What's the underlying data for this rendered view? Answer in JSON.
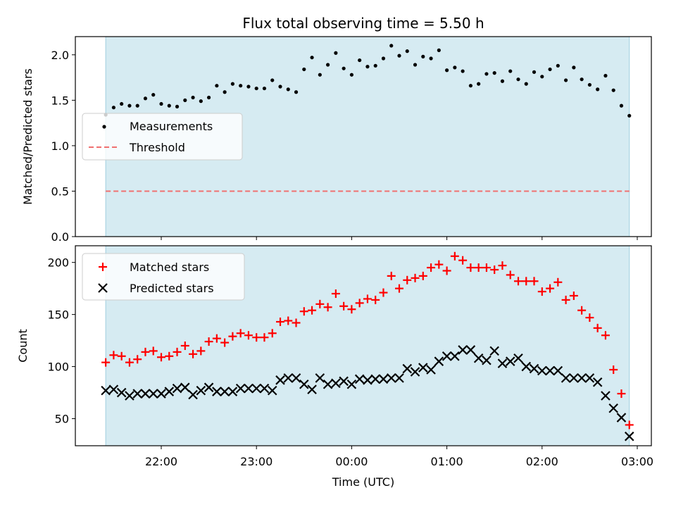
{
  "chart_data": [
    {
      "type": "scatter",
      "title": "Flux total observing time = 5.50 h",
      "xlabel": "",
      "ylabel": "Matched/Predicted stars",
      "x_tick_labels": [],
      "ylim": [
        0,
        2.2
      ],
      "y_ticks": [
        0.0,
        0.5,
        1.0,
        1.5,
        2.0
      ],
      "y_tick_labels": [
        "0.0",
        "0.5",
        "1.0",
        "1.5",
        "2.0"
      ],
      "legend_position": "center-left",
      "shaded_span": [
        "21:25",
        "02:55"
      ],
      "series": [
        {
          "name": "Measurements",
          "marker": "dot",
          "color": "#000000",
          "x": [
            "21:25",
            "21:30",
            "21:35",
            "21:40",
            "21:45",
            "21:50",
            "21:55",
            "22:00",
            "22:05",
            "22:10",
            "22:15",
            "22:20",
            "22:25",
            "22:30",
            "22:35",
            "22:40",
            "22:45",
            "22:50",
            "22:55",
            "23:00",
            "23:05",
            "23:10",
            "23:15",
            "23:20",
            "23:25",
            "23:30",
            "23:35",
            "23:40",
            "23:45",
            "23:50",
            "23:55",
            "00:00",
            "00:05",
            "00:10",
            "00:15",
            "00:20",
            "00:25",
            "00:30",
            "00:35",
            "00:40",
            "00:45",
            "00:50",
            "00:55",
            "01:00",
            "01:05",
            "01:10",
            "01:15",
            "01:20",
            "01:25",
            "01:30",
            "01:35",
            "01:40",
            "01:45",
            "01:50",
            "01:55",
            "02:00",
            "02:05",
            "02:10",
            "02:15",
            "02:20",
            "02:25",
            "02:30",
            "02:35",
            "02:40",
            "02:45",
            "02:50",
            "02:55"
          ],
          "y": [
            1.34,
            1.42,
            1.46,
            1.44,
            1.44,
            1.52,
            1.56,
            1.46,
            1.44,
            1.43,
            1.5,
            1.53,
            1.49,
            1.53,
            1.66,
            1.59,
            1.68,
            1.66,
            1.65,
            1.63,
            1.63,
            1.72,
            1.65,
            1.62,
            1.59,
            1.84,
            1.97,
            1.78,
            1.89,
            2.02,
            1.85,
            1.78,
            1.94,
            1.87,
            1.88,
            1.96,
            2.1,
            1.99,
            2.04,
            1.89,
            1.98,
            1.96,
            2.05,
            1.83,
            1.86,
            1.82,
            1.66,
            1.68,
            1.79,
            1.8,
            1.71,
            1.82,
            1.73,
            1.68,
            1.81,
            1.76,
            1.84,
            1.88,
            1.72,
            1.86,
            1.73,
            1.67,
            1.62,
            1.77,
            1.61,
            1.44,
            1.33
          ]
        },
        {
          "name": "Threshold",
          "type": "line",
          "style": "dashed",
          "color": "#f08080",
          "x": [
            "21:25",
            "02:55"
          ],
          "y": [
            0.5,
            0.5
          ]
        }
      ]
    },
    {
      "type": "scatter",
      "title": "",
      "xlabel": "Time (UTC)",
      "ylabel": "Count",
      "x_ticks": [
        "22:00",
        "23:00",
        "00:00",
        "01:00",
        "02:00",
        "03:00"
      ],
      "ylim": [
        24,
        216
      ],
      "y_ticks": [
        50,
        100,
        150,
        200
      ],
      "y_tick_labels": [
        "50",
        "100",
        "150",
        "200"
      ],
      "legend_position": "top-left",
      "shaded_span": [
        "21:25",
        "02:55"
      ],
      "series": [
        {
          "name": "Matched stars",
          "marker": "plus",
          "color": "#ff0000",
          "x": [
            "21:25",
            "21:30",
            "21:35",
            "21:40",
            "21:45",
            "21:50",
            "21:55",
            "22:00",
            "22:05",
            "22:10",
            "22:15",
            "22:20",
            "22:25",
            "22:30",
            "22:35",
            "22:40",
            "22:45",
            "22:50",
            "22:55",
            "23:00",
            "23:05",
            "23:10",
            "23:15",
            "23:20",
            "23:25",
            "23:30",
            "23:35",
            "23:40",
            "23:45",
            "23:50",
            "23:55",
            "00:00",
            "00:05",
            "00:10",
            "00:15",
            "00:20",
            "00:25",
            "00:30",
            "00:35",
            "00:40",
            "00:45",
            "00:50",
            "00:55",
            "01:00",
            "01:05",
            "01:10",
            "01:15",
            "01:20",
            "01:25",
            "01:30",
            "01:35",
            "01:40",
            "01:45",
            "01:50",
            "01:55",
            "02:00",
            "02:05",
            "02:10",
            "02:15",
            "02:20",
            "02:25",
            "02:30",
            "02:35",
            "02:40",
            "02:45",
            "02:50",
            "02:55"
          ],
          "y": [
            104,
            111,
            110,
            104,
            107,
            114,
            115,
            109,
            110,
            114,
            120,
            112,
            115,
            124,
            127,
            123,
            129,
            132,
            130,
            128,
            128,
            132,
            143,
            144,
            142,
            153,
            154,
            160,
            157,
            170,
            158,
            155,
            161,
            165,
            164,
            171,
            187,
            175,
            183,
            185,
            187,
            195,
            198,
            192,
            206,
            202,
            195,
            195,
            195,
            193,
            197,
            188,
            182,
            182,
            182,
            172,
            175,
            181,
            164,
            168,
            154,
            147,
            137,
            130,
            97,
            74,
            44
          ]
        },
        {
          "name": "Predicted stars",
          "marker": "x",
          "color": "#000000",
          "x": [
            "21:25",
            "21:30",
            "21:35",
            "21:40",
            "21:45",
            "21:50",
            "21:55",
            "22:00",
            "22:05",
            "22:10",
            "22:15",
            "22:20",
            "22:25",
            "22:30",
            "22:35",
            "22:40",
            "22:45",
            "22:50",
            "22:55",
            "23:00",
            "23:05",
            "23:10",
            "23:15",
            "23:20",
            "23:25",
            "23:30",
            "23:35",
            "23:40",
            "23:45",
            "23:50",
            "23:55",
            "00:00",
            "00:05",
            "00:10",
            "00:15",
            "00:20",
            "00:25",
            "00:30",
            "00:35",
            "00:40",
            "00:45",
            "00:50",
            "00:55",
            "01:00",
            "01:05",
            "01:10",
            "01:15",
            "01:20",
            "01:25",
            "01:30",
            "01:35",
            "01:40",
            "01:45",
            "01:50",
            "01:55",
            "02:00",
            "02:05",
            "02:10",
            "02:15",
            "02:20",
            "02:25",
            "02:30",
            "02:35",
            "02:40",
            "02:45",
            "02:50",
            "02:55"
          ],
          "y": [
            77,
            78,
            75,
            72,
            74,
            74,
            74,
            74,
            76,
            79,
            80,
            73,
            77,
            80,
            76,
            76,
            76,
            79,
            79,
            79,
            79,
            77,
            87,
            89,
            89,
            83,
            78,
            89,
            83,
            84,
            86,
            83,
            88,
            87,
            88,
            88,
            89,
            89,
            98,
            95,
            99,
            97,
            105,
            110,
            110,
            116,
            116,
            108,
            106,
            115,
            103,
            105,
            108,
            100,
            98,
            96,
            96,
            96,
            89,
            89,
            89,
            89,
            85,
            72,
            60,
            51,
            33
          ]
        }
      ]
    }
  ]
}
